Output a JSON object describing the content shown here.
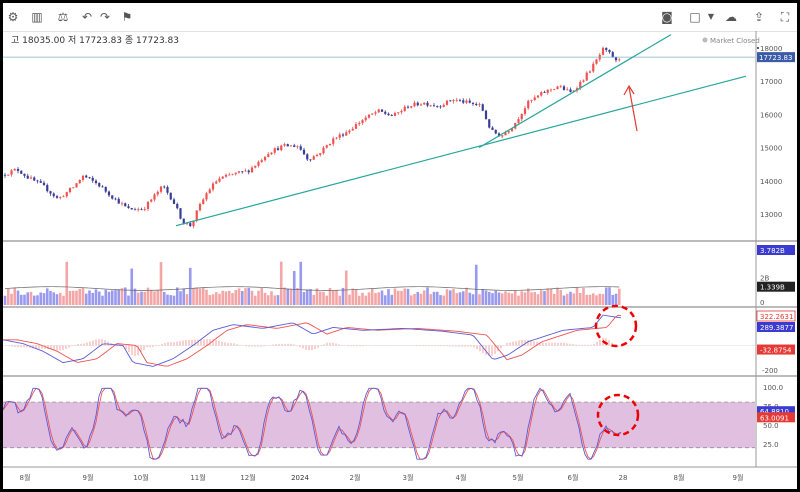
{
  "toolbar": {
    "icons": [
      "settings-icon",
      "bar-style-icon",
      "compare-icon",
      "undo-icon",
      "redo-icon",
      "alert-icon",
      "camera-icon",
      "layout-icon",
      "cloud-icon",
      "cloud-upload-icon",
      "fullscreen-icon"
    ]
  },
  "ohlc_header": {
    "high_label": "고",
    "high_value": "18035.00",
    "low_label": "저",
    "low_value": "17723.83",
    "close_label": "종",
    "close_value": "17723.83"
  },
  "market_status": "Market Closed",
  "colors": {
    "up": "#ef5350",
    "down": "#3b3b98",
    "bull_vol": "#f4a6a6",
    "bear_vol": "#9999ee",
    "trend": "#26a69a",
    "annot": "#e53935",
    "macd": "#5b5bd6",
    "signal": "#ef5350",
    "stoch_band": "#e1bfe1"
  },
  "chart_data": [
    {
      "type": "line",
      "name": "price",
      "x_ticks": [
        "8월",
        "9월",
        "10월",
        "11월",
        "12월",
        "2024",
        "2월",
        "3월",
        "4월",
        "5월",
        "6월",
        "28",
        "8월",
        "9월"
      ],
      "y_ticks": [
        13000,
        14000,
        15000,
        16000,
        17000,
        18000
      ],
      "ylim": [
        12250,
        18450
      ],
      "last_price_label": "17723.83",
      "approx_path": [
        [
          0,
          14180
        ],
        [
          14,
          14350
        ],
        [
          25,
          14100
        ],
        [
          40,
          13850
        ],
        [
          55,
          13450
        ],
        [
          70,
          13800
        ],
        [
          80,
          14150
        ],
        [
          95,
          13900
        ],
        [
          110,
          13500
        ],
        [
          125,
          13150
        ],
        [
          140,
          13150
        ],
        [
          150,
          13500
        ],
        [
          160,
          13850
        ],
        [
          170,
          13400
        ],
        [
          180,
          12750
        ],
        [
          188,
          12650
        ],
        [
          195,
          13150
        ],
        [
          205,
          13700
        ],
        [
          215,
          14050
        ],
        [
          230,
          14200
        ],
        [
          245,
          14300
        ],
        [
          255,
          14550
        ],
        [
          265,
          14850
        ],
        [
          280,
          15050
        ],
        [
          295,
          15050
        ],
        [
          305,
          14650
        ],
        [
          315,
          14800
        ],
        [
          330,
          15250
        ],
        [
          345,
          15500
        ],
        [
          360,
          15850
        ],
        [
          375,
          16100
        ],
        [
          390,
          15950
        ],
        [
          405,
          16250
        ],
        [
          420,
          16350
        ],
        [
          435,
          16250
        ],
        [
          450,
          16450
        ],
        [
          465,
          16350
        ],
        [
          478,
          16250
        ],
        [
          488,
          15500
        ],
        [
          498,
          15350
        ],
        [
          510,
          15650
        ],
        [
          525,
          16350
        ],
        [
          540,
          16650
        ],
        [
          555,
          16850
        ],
        [
          568,
          16650
        ],
        [
          580,
          17050
        ],
        [
          592,
          17550
        ],
        [
          600,
          17950
        ],
        [
          608,
          17800
        ],
        [
          614,
          17550
        ],
        [
          619,
          17850
        ]
      ],
      "trendlines": [
        {
          "from": [
            173,
            12650
          ],
          "to": [
            743,
            17150
          ]
        },
        {
          "from": [
            476,
            15000
          ],
          "to": [
            668,
            18400
          ]
        }
      ]
    },
    {
      "type": "bar",
      "name": "volume",
      "y_ticks": [
        "2B"
      ],
      "badges": [
        "3.782B",
        "1.339B"
      ]
    },
    {
      "type": "line",
      "name": "MACD",
      "y_ticks": [
        200,
        -200
      ],
      "badges": [
        "322.2631",
        "289.3877",
        "-32.8754"
      ]
    },
    {
      "type": "line",
      "name": "Stochastic",
      "y_ticks": [
        100,
        75,
        50,
        25
      ],
      "band": [
        20,
        80
      ],
      "badges": [
        "64.8810",
        "63.0091"
      ]
    }
  ]
}
